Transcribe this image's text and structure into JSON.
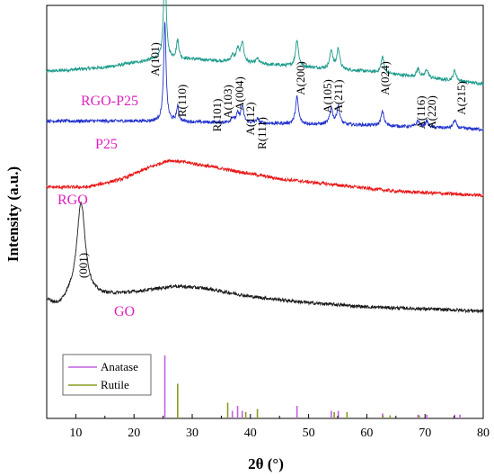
{
  "chart_data": {
    "type": "line",
    "xlabel": "2θ (°)",
    "ylabel": "Intensity (a.u.)",
    "xlim": [
      5,
      80
    ],
    "xticks": [
      10,
      20,
      30,
      40,
      50,
      60,
      70,
      80
    ],
    "grid": false,
    "series": [
      {
        "name": "RGO-P25",
        "color": "#1a9a8a",
        "offset": 0.84,
        "baseline": [
          [
            5,
            0.0
          ],
          [
            15,
            0.01
          ],
          [
            24,
            0.03
          ],
          [
            30,
            0.03
          ],
          [
            40,
            0.02
          ],
          [
            60,
            0.0
          ],
          [
            80,
            -0.03
          ]
        ],
        "peaks": [
          {
            "x": 25.3,
            "h": 0.24,
            "w": 0.25
          },
          {
            "x": 27.5,
            "h": 0.045,
            "w": 0.25
          },
          {
            "x": 36.9,
            "h": 0.015,
            "w": 0.3
          },
          {
            "x": 37.8,
            "h": 0.03,
            "w": 0.3
          },
          {
            "x": 38.6,
            "h": 0.05,
            "w": 0.3
          },
          {
            "x": 41.2,
            "h": 0.012,
            "w": 0.3
          },
          {
            "x": 48.0,
            "h": 0.065,
            "w": 0.3
          },
          {
            "x": 53.9,
            "h": 0.045,
            "w": 0.3
          },
          {
            "x": 55.1,
            "h": 0.05,
            "w": 0.3
          },
          {
            "x": 62.7,
            "h": 0.04,
            "w": 0.3
          },
          {
            "x": 68.8,
            "h": 0.02,
            "w": 0.3
          },
          {
            "x": 70.3,
            "h": 0.02,
            "w": 0.3
          },
          {
            "x": 75.1,
            "h": 0.025,
            "w": 0.3
          }
        ]
      },
      {
        "name": "P25",
        "color": "#2233cc",
        "offset": 0.72,
        "baseline": [
          [
            5,
            0.0
          ],
          [
            20,
            0.0
          ],
          [
            40,
            -0.005
          ],
          [
            60,
            -0.01
          ],
          [
            80,
            -0.02
          ]
        ],
        "peaks": [
          {
            "x": 25.3,
            "h": 0.24,
            "w": 0.25
          },
          {
            "x": 27.5,
            "h": 0.035,
            "w": 0.25
          },
          {
            "x": 36.9,
            "h": 0.012,
            "w": 0.3
          },
          {
            "x": 37.8,
            "h": 0.02,
            "w": 0.3
          },
          {
            "x": 38.6,
            "h": 0.04,
            "w": 0.3
          },
          {
            "x": 41.2,
            "h": 0.01,
            "w": 0.3
          },
          {
            "x": 48.0,
            "h": 0.065,
            "w": 0.3
          },
          {
            "x": 53.9,
            "h": 0.04,
            "w": 0.3
          },
          {
            "x": 55.1,
            "h": 0.045,
            "w": 0.3
          },
          {
            "x": 62.7,
            "h": 0.035,
            "w": 0.3
          },
          {
            "x": 68.8,
            "h": 0.015,
            "w": 0.3
          },
          {
            "x": 70.3,
            "h": 0.015,
            "w": 0.3
          },
          {
            "x": 75.1,
            "h": 0.02,
            "w": 0.3
          }
        ]
      },
      {
        "name": "RGO",
        "color": "#e81818",
        "offset": 0.56,
        "baseline": [
          [
            5,
            0.0
          ],
          [
            12,
            0.0
          ],
          [
            18,
            0.02
          ],
          [
            23,
            0.05
          ],
          [
            26,
            0.065
          ],
          [
            29,
            0.06
          ],
          [
            35,
            0.045
          ],
          [
            45,
            0.02
          ],
          [
            55,
            0.005
          ],
          [
            65,
            -0.01
          ],
          [
            80,
            -0.02
          ]
        ],
        "peaks": []
      },
      {
        "name": "GO",
        "color": "#1a1a1a",
        "offset": 0.285,
        "baseline": [
          [
            5,
            0.0
          ],
          [
            7,
            -0.015
          ],
          [
            9,
            0.005
          ],
          [
            14,
            0.01
          ],
          [
            20,
            0.02
          ],
          [
            27,
            0.035
          ],
          [
            32,
            0.03
          ],
          [
            40,
            0.01
          ],
          [
            50,
            -0.005
          ],
          [
            60,
            -0.015
          ],
          [
            80,
            -0.025
          ]
        ],
        "peaks": [
          {
            "x": 10.9,
            "h": 0.23,
            "w": 0.9
          }
        ]
      }
    ],
    "series_labels": [
      {
        "text": "RGO-P25",
        "color": "#e020c0"
      },
      {
        "text": "P25",
        "color": "#e020c0"
      },
      {
        "text": "RGO",
        "color": "#e020c0"
      },
      {
        "text": "GO",
        "color": "#e020c0"
      }
    ],
    "peak_labels": [
      {
        "text": "A(101)",
        "x": 25.3
      },
      {
        "text": "R(110)",
        "x": 27.5
      },
      {
        "text": "R(101)",
        "x": 36.1
      },
      {
        "text": "A(103)",
        "x": 37.0
      },
      {
        "text": "A(004)",
        "x": 38.0
      },
      {
        "text": "A(112)",
        "x": 39.1
      },
      {
        "text": "R(111)",
        "x": 41.2
      },
      {
        "text": "A(200)",
        "x": 48.0
      },
      {
        "text": "A(105)",
        "x": 53.9
      },
      {
        "text": "A(211)",
        "x": 55.1
      },
      {
        "text": "A(024)",
        "x": 62.7
      },
      {
        "text": "A(116)",
        "x": 68.8
      },
      {
        "text": "A(220)",
        "x": 70.3
      },
      {
        "text": "A(215)",
        "x": 75.1
      },
      {
        "text": "(001)",
        "x": 10.9
      }
    ],
    "reference": {
      "legend": [
        {
          "name": "Anatase",
          "color": "#c060e0"
        },
        {
          "name": "Rutile",
          "color": "#8a9a20"
        }
      ],
      "Anatase": [
        {
          "x": 25.3,
          "h": 1.0
        },
        {
          "x": 36.9,
          "h": 0.12
        },
        {
          "x": 37.8,
          "h": 0.2
        },
        {
          "x": 38.6,
          "h": 0.12
        },
        {
          "x": 48.0,
          "h": 0.2
        },
        {
          "x": 53.9,
          "h": 0.12
        },
        {
          "x": 55.1,
          "h": 0.12
        },
        {
          "x": 62.7,
          "h": 0.08
        },
        {
          "x": 68.8,
          "h": 0.06
        },
        {
          "x": 70.3,
          "h": 0.06
        },
        {
          "x": 75.1,
          "h": 0.06
        },
        {
          "x": 76.0,
          "h": 0.06
        }
      ],
      "Rutile": [
        {
          "x": 27.5,
          "h": 0.55
        },
        {
          "x": 36.1,
          "h": 0.25
        },
        {
          "x": 39.2,
          "h": 0.1
        },
        {
          "x": 41.2,
          "h": 0.15
        },
        {
          "x": 54.4,
          "h": 0.1
        },
        {
          "x": 56.6,
          "h": 0.1
        },
        {
          "x": 62.8,
          "h": 0.05
        },
        {
          "x": 64.0,
          "h": 0.05
        },
        {
          "x": 69.0,
          "h": 0.05
        }
      ]
    }
  }
}
